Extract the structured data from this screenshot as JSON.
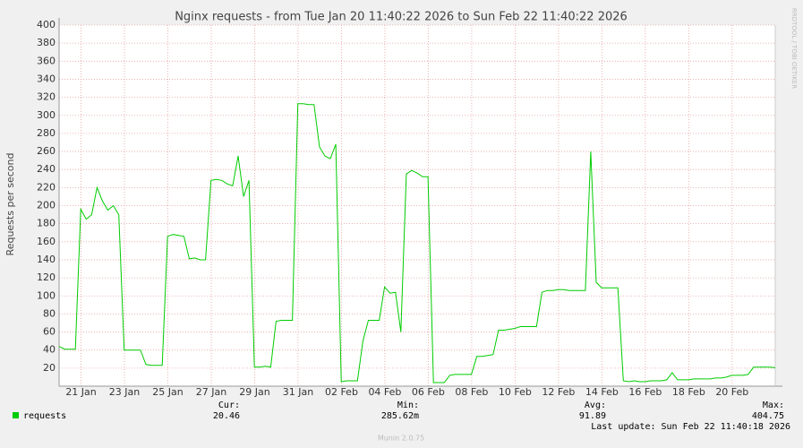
{
  "chart_data": {
    "type": "line",
    "title": "Nginx requests - from Tue Jan 20 11:40:22 2026 to Sun Feb 22 11:40:22 2026",
    "y_label": "Requests per second",
    "side_label": "RRDTOOL / TOBI OETIKER",
    "series": [
      {
        "name": "requests",
        "color": "#00cc00",
        "values": [
          44,
          41,
          41,
          41,
          196,
          185,
          190,
          220,
          205,
          195,
          200,
          190,
          40,
          40,
          40,
          40,
          24,
          23,
          23,
          23,
          166,
          168,
          167,
          166,
          141,
          142,
          140,
          140,
          228,
          229,
          228,
          224,
          222,
          255,
          210,
          228,
          21,
          21,
          22,
          21,
          72,
          73,
          73,
          73,
          313,
          313,
          312,
          312,
          265,
          255,
          252,
          268,
          5,
          6,
          6,
          6,
          50,
          73,
          73,
          73,
          110,
          103,
          104,
          60,
          235,
          239,
          236,
          232,
          232,
          4,
          4,
          4,
          12,
          13,
          13,
          13,
          13,
          33,
          33,
          34,
          35,
          62,
          62,
          63,
          64,
          66,
          66,
          66,
          66,
          104,
          106,
          106,
          107,
          107,
          106,
          106,
          106,
          106,
          260,
          115,
          109,
          109,
          109,
          109,
          6,
          5,
          6,
          5,
          5,
          6,
          6,
          6,
          7,
          15,
          7,
          7,
          7,
          8,
          8,
          8,
          8,
          9,
          9,
          10,
          12,
          12,
          12,
          13,
          21,
          21,
          21,
          21,
          20.46
        ]
      }
    ],
    "xlim": [
      0,
      132
    ],
    "xticks": [
      {
        "value": 4.05,
        "label": "21 Jan"
      },
      {
        "value": 12.05,
        "label": "23 Jan"
      },
      {
        "value": 20.05,
        "label": "25 Jan"
      },
      {
        "value": 28.05,
        "label": "27 Jan"
      },
      {
        "value": 36.05,
        "label": "29 Jan"
      },
      {
        "value": 44.05,
        "label": "31 Jan"
      },
      {
        "value": 52.05,
        "label": "02 Feb"
      },
      {
        "value": 60.05,
        "label": "04 Feb"
      },
      {
        "value": 68.05,
        "label": "06 Feb"
      },
      {
        "value": 76.05,
        "label": "08 Feb"
      },
      {
        "value": 84.05,
        "label": "10 Feb"
      },
      {
        "value": 92.05,
        "label": "12 Feb"
      },
      {
        "value": 100.05,
        "label": "14 Feb"
      },
      {
        "value": 108.05,
        "label": "16 Feb"
      },
      {
        "value": 116.05,
        "label": "18 Feb"
      },
      {
        "value": 124.05,
        "label": "20 Feb"
      }
    ],
    "ylim": [
      0,
      400
    ],
    "yticks": [
      20,
      40,
      60,
      80,
      100,
      120,
      140,
      160,
      180,
      200,
      220,
      240,
      260,
      280,
      300,
      320,
      340,
      360,
      380,
      400
    ],
    "grid": true,
    "stats": [
      {
        "label": "Cur:",
        "value": "20.46"
      },
      {
        "label": "Min:",
        "value": "285.62m"
      },
      {
        "label": "Avg:",
        "value": "91.89"
      },
      {
        "label": "Max:",
        "value": "404.75"
      }
    ],
    "last_update": "Last update: Sun Feb 22 11:40:18 2026",
    "footer": "Munin 2.0.75"
  }
}
